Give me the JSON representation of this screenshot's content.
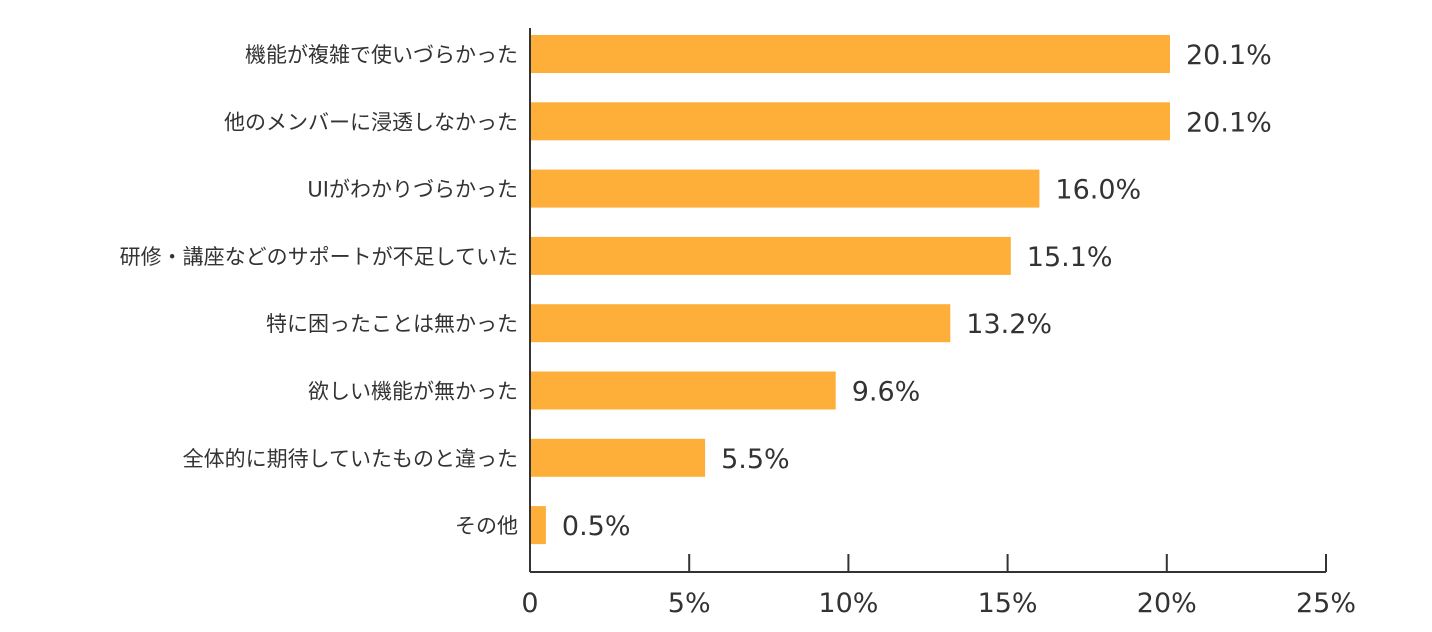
{
  "chart_data": {
    "type": "bar",
    "orientation": "horizontal",
    "categories": [
      "機能が複雑で使いづらかった",
      "他のメンバーに浸透しなかった",
      "UIがわかりづらかった",
      "研修・講座などのサポートが不足していた",
      "特に困ったことは無かった",
      "欲しい機能が無かった",
      "全体的に期待していたものと違った",
      "その他"
    ],
    "values": [
      20.1,
      20.1,
      16.0,
      15.1,
      13.2,
      9.6,
      5.5,
      0.5
    ],
    "value_labels": [
      "20.1%",
      "20.1%",
      "16.0%",
      "15.1%",
      "13.2%",
      "9.6%",
      "5.5%",
      "0.5%"
    ],
    "xlim": [
      0,
      25
    ],
    "xticks": [
      0,
      5,
      10,
      15,
      20,
      25
    ],
    "xtick_labels": [
      "0",
      "5%",
      "10%",
      "15%",
      "20%",
      "25%"
    ],
    "title": "",
    "xlabel": "",
    "ylabel": "",
    "grid": false,
    "legend": "none",
    "bar_color": "#FDAF3A",
    "axis_color": "#333333",
    "text_color": "#333333"
  }
}
